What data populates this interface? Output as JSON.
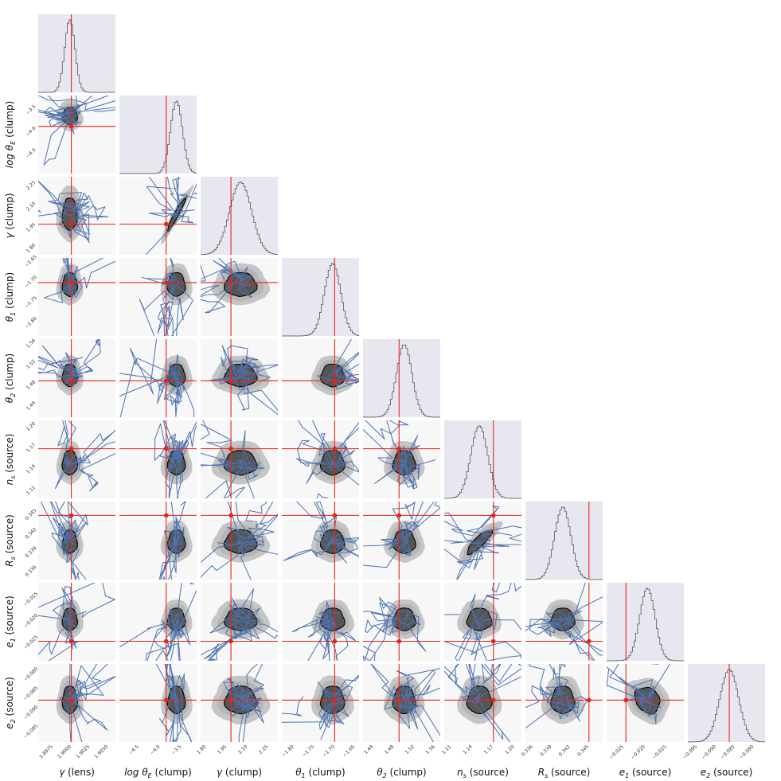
{
  "chart_data": {
    "type": "corner",
    "parameters": [
      {
        "name": "γ (lens)",
        "symbol": "γ",
        "sub": "",
        "suffix": " (lens)",
        "ticks": [
          "1.8975",
          "1.9000",
          "1.9025",
          "1.9050"
        ],
        "tick_values": [
          1.8975,
          1.9,
          1.9025,
          1.905
        ],
        "range": [
          1.8955,
          1.906
        ],
        "truth": 1.9,
        "mean": 1.8998,
        "sd": 0.0007
      },
      {
        "name": "log θE (clump)",
        "symbol": "log θ",
        "sub": "E",
        "suffix": " (clump)",
        "ticks": [
          "−4.5",
          "−4.0",
          "−3.5"
        ],
        "tick_values": [
          -4.5,
          -4.0,
          -3.5
        ],
        "range": [
          -4.95,
          -3.15
        ],
        "truth": -3.86,
        "mean": -3.62,
        "sd": 0.14
      },
      {
        "name": "γ (clump)",
        "symbol": "γ",
        "sub": "",
        "suffix": " (clump)",
        "ticks": [
          "1.80",
          "1.95",
          "2.10",
          "2.25"
        ],
        "tick_values": [
          1.8,
          1.95,
          2.1,
          2.25
        ],
        "range": [
          1.76,
          2.32
        ],
        "truth": 1.98,
        "mean": 2.05,
        "sd": 0.08
      },
      {
        "name": "θ1 (clump)",
        "symbol": "θ",
        "sub": "1",
        "suffix": " (clump)",
        "ticks": [
          "−1.80",
          "−1.75",
          "−1.70",
          "−1.65"
        ],
        "tick_values": [
          -1.8,
          -1.75,
          -1.7,
          -1.65
        ],
        "range": [
          -1.83,
          -1.64
        ],
        "truth": -1.7,
        "mean": -1.705,
        "sd": 0.02
      },
      {
        "name": "θ2 (clump)",
        "symbol": "θ",
        "sub": "2",
        "suffix": " (clump)",
        "ticks": [
          "1.44",
          "1.48",
          "1.52",
          "1.56"
        ],
        "tick_values": [
          1.44,
          1.48,
          1.52,
          1.56
        ],
        "range": [
          1.42,
          1.57
        ],
        "truth": 1.49,
        "mean": 1.5,
        "sd": 0.015
      },
      {
        "name": "ns (source)",
        "symbol": "n",
        "sub": "s",
        "suffix": " (source)",
        "ticks": [
          "1.11",
          "1.14",
          "1.17",
          "1.20"
        ],
        "tick_values": [
          1.11,
          1.14,
          1.17,
          1.2
        ],
        "range": [
          1.1,
          1.21
        ],
        "truth": 1.17,
        "mean": 1.15,
        "sd": 0.012
      },
      {
        "name": "Rs (source)",
        "symbol": "R",
        "sub": "s",
        "suffix": " (source)",
        "ticks": [
          "0.336",
          "0.339",
          "0.342",
          "0.345"
        ],
        "tick_values": [
          0.336,
          0.339,
          0.342,
          0.345
        ],
        "range": [
          0.3348,
          0.3472
        ],
        "truth": 0.345,
        "mean": 0.3408,
        "sd": 0.0013
      },
      {
        "name": "e1 (source)",
        "symbol": "e",
        "sub": "1",
        "suffix": " (source)",
        "ticks": [
          "−0.025",
          "−0.020",
          "−0.015"
        ],
        "tick_values": [
          -0.025,
          -0.02,
          -0.015
        ],
        "range": [
          -0.029,
          -0.011
        ],
        "truth": -0.0245,
        "mean": -0.0195,
        "sd": 0.0018
      },
      {
        "name": "e2 (source)",
        "symbol": "e",
        "sub": "2",
        "suffix": " (source)",
        "ticks": [
          "−0.095",
          "−0.090",
          "−0.085",
          "−0.080"
        ],
        "tick_values": [
          -0.095,
          -0.09,
          -0.085,
          -0.08
        ],
        "range": [
          -0.0975,
          -0.077
        ],
        "truth": -0.0865,
        "mean": -0.0865,
        "sd": 0.0025
      }
    ],
    "correlations": {
      "2-1": 0.97,
      "6-5": 0.85,
      "6-8": -0.55,
      "8-7": -0.2
    },
    "colors": {
      "histogram": "#444444",
      "diag_bg": "#e6e7ef",
      "panel_bg": "#f7f7f7",
      "contour_inner": "#555555",
      "contour_outer": "#c5c5c5",
      "contour_mid": "#a9a9a9",
      "truth": "#e8231c",
      "chain": "#4c72b0"
    },
    "grid": false
  }
}
